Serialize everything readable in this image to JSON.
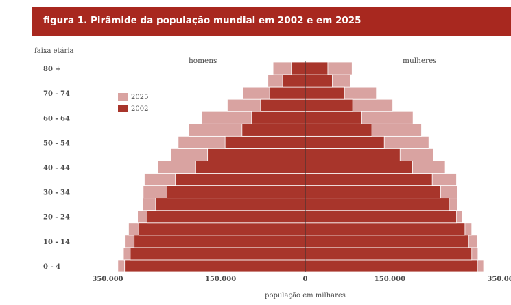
{
  "figure_title": "figura 1. Pirâmide da população mundial em 2002 e em 2025",
  "colors": {
    "header": "#a8281f",
    "series_2002": "#a8352b",
    "series_2025": "#d9a3a1",
    "bar_stroke": "#ffffff",
    "axis": "#333333"
  },
  "chart_data": {
    "type": "bar",
    "orientation": "horizontal-population-pyramid",
    "title": "figura 1. Pirâmide da população mundial em 2002 e em 2025",
    "ylabel": "faixa etária",
    "xlabel": "população em milhares",
    "left_label": "homens",
    "right_label": "mulheres",
    "xlim": [
      -350000,
      350000
    ],
    "x_ticks": [
      -350000,
      -150000,
      0,
      150000,
      350000
    ],
    "x_tick_labels": [
      "350.000",
      "150.000",
      "0",
      "150.000",
      "350.000"
    ],
    "age_groups": [
      "0 - 4",
      "5 - 9",
      "10 - 14",
      "15 - 19",
      "20 - 24",
      "25 - 29",
      "30 - 34",
      "35 - 39",
      "40 - 44",
      "45 - 49",
      "50 - 54",
      "55 - 59",
      "60 - 64",
      "65 - 69",
      "70 - 74",
      "75 - 79",
      "80 +"
    ],
    "age_labels_shown": [
      "80 +",
      "70 - 74",
      "60 - 64",
      "50 - 54",
      "40 - 44",
      "30 - 34",
      "20 - 24",
      "10 - 14",
      "0 - 4"
    ],
    "legend": [
      "2025",
      "2002"
    ],
    "legend_position": "upper-left",
    "series": [
      {
        "name": "2025",
        "men": [
          332000,
          322000,
          320000,
          313000,
          297000,
          288000,
          287000,
          285000,
          261000,
          238000,
          225000,
          206000,
          183000,
          138000,
          110000,
          66000,
          57000
        ],
        "women": [
          316000,
          306000,
          305000,
          295000,
          278000,
          270000,
          270000,
          268000,
          248000,
          227000,
          219000,
          206000,
          191000,
          155000,
          126000,
          80000,
          83000
        ]
      },
      {
        "name": "2002",
        "men": [
          320000,
          310000,
          303000,
          295000,
          280000,
          265000,
          245000,
          230000,
          194000,
          173000,
          142000,
          112000,
          95000,
          79000,
          63000,
          40000,
          25000
        ],
        "women": [
          305000,
          295000,
          290000,
          283000,
          268000,
          255000,
          240000,
          225000,
          190000,
          168000,
          140000,
          118000,
          100000,
          84000,
          70000,
          48000,
          40000
        ]
      }
    ]
  }
}
